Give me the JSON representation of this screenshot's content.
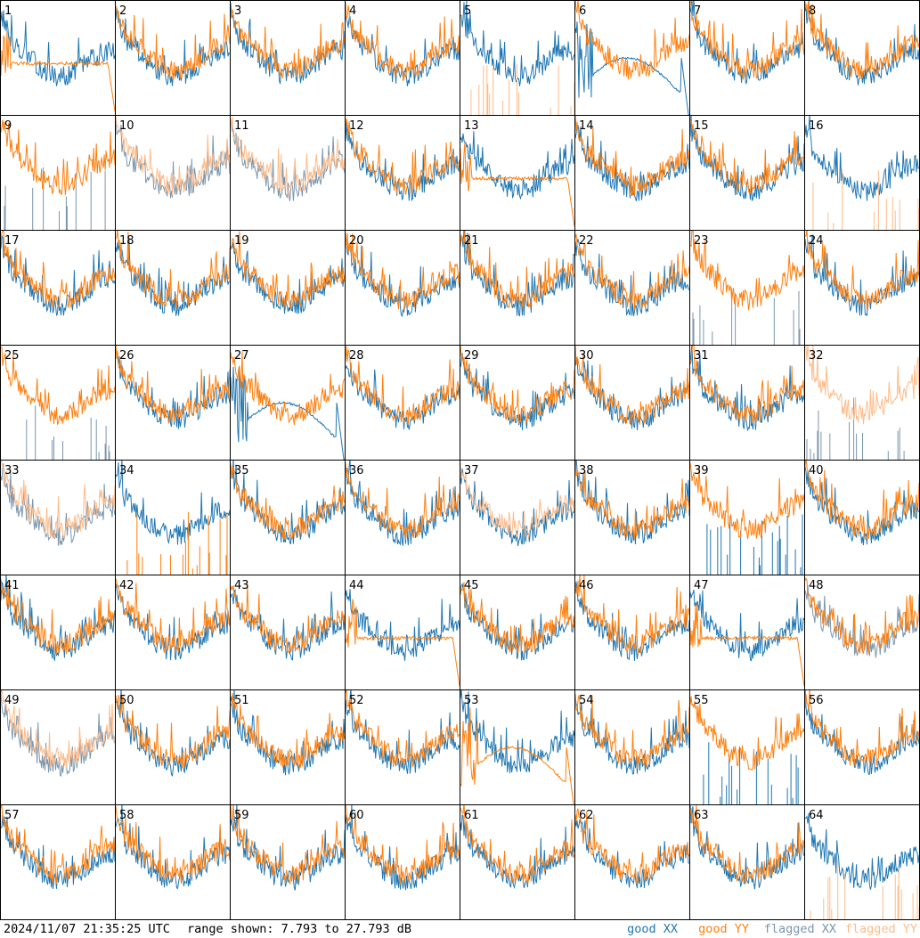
{
  "footer": {
    "timestamp": "2024/11/07 21:35:25 UTC",
    "range_text": "range shown: 7.793 to 27.793 dB",
    "legend": {
      "good_xx": "good XX",
      "good_yy": "good YY",
      "flagged_xx": "flagged XX",
      "flagged_yy": "flagged YY"
    }
  },
  "colors": {
    "good_xx": "#1f77b4",
    "good_yy": "#ff7f0e",
    "flagged_xx": "#7b96ad",
    "flagged_yy": "#ffbb88"
  },
  "chart_data": {
    "type": "line",
    "layout": "small-multiples 8x8",
    "ylim_db": [
      7.793,
      27.793
    ],
    "panels": [
      {
        "id": "1",
        "xx": {
          "shape": "normal",
          "flag": false
        },
        "yy": {
          "shape": "flat",
          "flag": false
        }
      },
      {
        "id": "2",
        "xx": {
          "shape": "normal",
          "flag": false
        },
        "yy": {
          "shape": "normal",
          "flag": false
        }
      },
      {
        "id": "3",
        "xx": {
          "shape": "normal",
          "flag": false
        },
        "yy": {
          "shape": "normal",
          "flag": false
        }
      },
      {
        "id": "4",
        "xx": {
          "shape": "normal",
          "flag": false
        },
        "yy": {
          "shape": "normal",
          "flag": false
        }
      },
      {
        "id": "5",
        "xx": {
          "shape": "normal",
          "flag": false
        },
        "yy": {
          "shape": "spikes",
          "flag": true
        }
      },
      {
        "id": "6",
        "xx": {
          "shape": "broken",
          "flag": false
        },
        "yy": {
          "shape": "normal",
          "flag": false
        }
      },
      {
        "id": "7",
        "xx": {
          "shape": "normal",
          "flag": false
        },
        "yy": {
          "shape": "normal",
          "flag": false
        }
      },
      {
        "id": "8",
        "xx": {
          "shape": "normal",
          "flag": false
        },
        "yy": {
          "shape": "normal",
          "flag": false
        }
      },
      {
        "id": "9",
        "xx": {
          "shape": "spikes",
          "flag": true
        },
        "yy": {
          "shape": "normal",
          "flag": false
        }
      },
      {
        "id": "10",
        "xx": {
          "shape": "normal",
          "flag": true
        },
        "yy": {
          "shape": "normal",
          "flag": true
        }
      },
      {
        "id": "11",
        "xx": {
          "shape": "normal",
          "flag": true
        },
        "yy": {
          "shape": "normal",
          "flag": true
        }
      },
      {
        "id": "12",
        "xx": {
          "shape": "normal",
          "flag": false
        },
        "yy": {
          "shape": "normal",
          "flag": false
        }
      },
      {
        "id": "13",
        "xx": {
          "shape": "normal",
          "flag": false
        },
        "yy": {
          "shape": "flat",
          "flag": false
        }
      },
      {
        "id": "14",
        "xx": {
          "shape": "normal",
          "flag": false
        },
        "yy": {
          "shape": "normal",
          "flag": false
        }
      },
      {
        "id": "15",
        "xx": {
          "shape": "normal",
          "flag": false
        },
        "yy": {
          "shape": "normal",
          "flag": false
        }
      },
      {
        "id": "16",
        "xx": {
          "shape": "normal",
          "flag": false
        },
        "yy": {
          "shape": "spikes",
          "flag": true
        }
      },
      {
        "id": "17",
        "xx": {
          "shape": "normal",
          "flag": false
        },
        "yy": {
          "shape": "normal",
          "flag": false
        }
      },
      {
        "id": "18",
        "xx": {
          "shape": "normal",
          "flag": false
        },
        "yy": {
          "shape": "normal",
          "flag": false
        }
      },
      {
        "id": "19",
        "xx": {
          "shape": "normal",
          "flag": false
        },
        "yy": {
          "shape": "normal",
          "flag": false
        }
      },
      {
        "id": "20",
        "xx": {
          "shape": "normal",
          "flag": false
        },
        "yy": {
          "shape": "normal",
          "flag": false
        }
      },
      {
        "id": "21",
        "xx": {
          "shape": "normal",
          "flag": false
        },
        "yy": {
          "shape": "normal",
          "flag": false
        }
      },
      {
        "id": "22",
        "xx": {
          "shape": "normal",
          "flag": false
        },
        "yy": {
          "shape": "normal",
          "flag": false
        }
      },
      {
        "id": "23",
        "xx": {
          "shape": "spikes",
          "flag": true
        },
        "yy": {
          "shape": "normal",
          "flag": false
        }
      },
      {
        "id": "24",
        "xx": {
          "shape": "normal",
          "flag": false
        },
        "yy": {
          "shape": "normal",
          "flag": false
        }
      },
      {
        "id": "25",
        "xx": {
          "shape": "spikes",
          "flag": true
        },
        "yy": {
          "shape": "normal",
          "flag": false
        }
      },
      {
        "id": "26",
        "xx": {
          "shape": "normal",
          "flag": false
        },
        "yy": {
          "shape": "normal",
          "flag": false
        }
      },
      {
        "id": "27",
        "xx": {
          "shape": "broken",
          "flag": false
        },
        "yy": {
          "shape": "normal",
          "flag": false
        }
      },
      {
        "id": "28",
        "xx": {
          "shape": "normal",
          "flag": false
        },
        "yy": {
          "shape": "normal",
          "flag": false
        }
      },
      {
        "id": "29",
        "xx": {
          "shape": "normal",
          "flag": false
        },
        "yy": {
          "shape": "normal",
          "flag": false
        }
      },
      {
        "id": "30",
        "xx": {
          "shape": "normal",
          "flag": false
        },
        "yy": {
          "shape": "normal",
          "flag": false
        }
      },
      {
        "id": "31",
        "xx": {
          "shape": "normal",
          "flag": false
        },
        "yy": {
          "shape": "normal",
          "flag": false
        }
      },
      {
        "id": "32",
        "xx": {
          "shape": "spikes",
          "flag": true
        },
        "yy": {
          "shape": "normal",
          "flag": true
        }
      },
      {
        "id": "33",
        "xx": {
          "shape": "normal",
          "flag": true
        },
        "yy": {
          "shape": "normal",
          "flag": true
        }
      },
      {
        "id": "34",
        "xx": {
          "shape": "normal",
          "flag": false
        },
        "yy": {
          "shape": "spikes",
          "flag": false
        }
      },
      {
        "id": "35",
        "xx": {
          "shape": "normal",
          "flag": false
        },
        "yy": {
          "shape": "normal",
          "flag": false
        }
      },
      {
        "id": "36",
        "xx": {
          "shape": "normal",
          "flag": false
        },
        "yy": {
          "shape": "normal",
          "flag": false
        }
      },
      {
        "id": "37",
        "xx": {
          "shape": "normal",
          "flag": false
        },
        "yy": {
          "shape": "normal",
          "flag": true
        }
      },
      {
        "id": "38",
        "xx": {
          "shape": "normal",
          "flag": false
        },
        "yy": {
          "shape": "normal",
          "flag": false
        }
      },
      {
        "id": "39",
        "xx": {
          "shape": "spikes",
          "flag": false
        },
        "yy": {
          "shape": "normal",
          "flag": false
        }
      },
      {
        "id": "40",
        "xx": {
          "shape": "normal",
          "flag": false
        },
        "yy": {
          "shape": "normal",
          "flag": false
        }
      },
      {
        "id": "41",
        "xx": {
          "shape": "normal",
          "flag": false
        },
        "yy": {
          "shape": "normal",
          "flag": false
        }
      },
      {
        "id": "42",
        "xx": {
          "shape": "normal",
          "flag": false
        },
        "yy": {
          "shape": "normal",
          "flag": false
        }
      },
      {
        "id": "43",
        "xx": {
          "shape": "normal",
          "flag": false
        },
        "yy": {
          "shape": "normal",
          "flag": false
        }
      },
      {
        "id": "44",
        "xx": {
          "shape": "normal",
          "flag": false
        },
        "yy": {
          "shape": "flat",
          "flag": false
        }
      },
      {
        "id": "45",
        "xx": {
          "shape": "normal",
          "flag": false
        },
        "yy": {
          "shape": "normal",
          "flag": false
        }
      },
      {
        "id": "46",
        "xx": {
          "shape": "normal",
          "flag": false
        },
        "yy": {
          "shape": "normal",
          "flag": false
        }
      },
      {
        "id": "47",
        "xx": {
          "shape": "normal",
          "flag": false
        },
        "yy": {
          "shape": "flat",
          "flag": false
        }
      },
      {
        "id": "48",
        "xx": {
          "shape": "normal",
          "flag": true
        },
        "yy": {
          "shape": "normal",
          "flag": false
        }
      },
      {
        "id": "49",
        "xx": {
          "shape": "normal",
          "flag": true
        },
        "yy": {
          "shape": "normal",
          "flag": true
        }
      },
      {
        "id": "50",
        "xx": {
          "shape": "normal",
          "flag": false
        },
        "yy": {
          "shape": "normal",
          "flag": false
        }
      },
      {
        "id": "51",
        "xx": {
          "shape": "normal",
          "flag": false
        },
        "yy": {
          "shape": "normal",
          "flag": false
        }
      },
      {
        "id": "52",
        "xx": {
          "shape": "normal",
          "flag": false
        },
        "yy": {
          "shape": "normal",
          "flag": false
        }
      },
      {
        "id": "53",
        "xx": {
          "shape": "normal",
          "flag": false
        },
        "yy": {
          "shape": "broken",
          "flag": false
        }
      },
      {
        "id": "54",
        "xx": {
          "shape": "normal",
          "flag": false
        },
        "yy": {
          "shape": "normal",
          "flag": false
        }
      },
      {
        "id": "55",
        "xx": {
          "shape": "spikes",
          "flag": false
        },
        "yy": {
          "shape": "normal",
          "flag": false
        }
      },
      {
        "id": "56",
        "xx": {
          "shape": "normal",
          "flag": false
        },
        "yy": {
          "shape": "normal",
          "flag": false
        }
      },
      {
        "id": "57",
        "xx": {
          "shape": "normal",
          "flag": false
        },
        "yy": {
          "shape": "normal",
          "flag": false
        }
      },
      {
        "id": "58",
        "xx": {
          "shape": "normal",
          "flag": false
        },
        "yy": {
          "shape": "normal",
          "flag": false
        }
      },
      {
        "id": "59",
        "xx": {
          "shape": "normal",
          "flag": false
        },
        "yy": {
          "shape": "normal",
          "flag": false
        }
      },
      {
        "id": "60",
        "xx": {
          "shape": "normal",
          "flag": false
        },
        "yy": {
          "shape": "normal",
          "flag": false
        }
      },
      {
        "id": "61",
        "xx": {
          "shape": "normal",
          "flag": false
        },
        "yy": {
          "shape": "normal",
          "flag": false
        }
      },
      {
        "id": "62",
        "xx": {
          "shape": "normal",
          "flag": false
        },
        "yy": {
          "shape": "normal",
          "flag": false
        }
      },
      {
        "id": "63",
        "xx": {
          "shape": "normal",
          "flag": false
        },
        "yy": {
          "shape": "normal",
          "flag": false
        }
      },
      {
        "id": "64",
        "xx": {
          "shape": "normal",
          "flag": false
        },
        "yy": {
          "shape": "spikes",
          "flag": true
        }
      }
    ]
  }
}
